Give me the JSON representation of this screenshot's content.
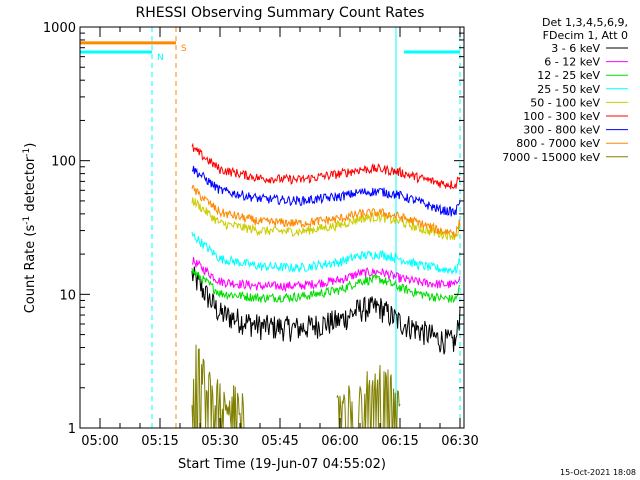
{
  "chart_data": {
    "type": "line",
    "title": "RHESSI Observing Summary Count Rates",
    "xlabel": "Start Time (19-Jun-07 04:55:02)",
    "ylabel_main": "Count Rate (s",
    "ylabel_sup1": "-1",
    "ylabel_mid": " detector",
    "ylabel_sup2": "-1",
    "ylabel_end": ")",
    "yscale": "log",
    "xlim": [
      "04:55",
      "06:31"
    ],
    "ylim": [
      1,
      1000
    ],
    "x_ticks": [
      "05:00",
      "05:15",
      "05:30",
      "05:45",
      "06:00",
      "06:15",
      "06:30"
    ],
    "y_ticks": [
      "1",
      "10",
      "100",
      "1000"
    ],
    "legend_header": [
      "Det 1,3,4,5,6,9,",
      "FDecim 1, Att 0"
    ],
    "legend_position": "right",
    "timestamp": "15-Oct-2021 18:08",
    "data_start": "05:23",
    "data_end": "06:30",
    "series": [
      {
        "name": "3 - 6 keV",
        "color": "#000000",
        "x": [
          "05:23",
          "05:30",
          "05:40",
          "05:50",
          "06:00",
          "06:05",
          "06:10",
          "06:15",
          "06:20",
          "06:25",
          "06:29",
          "06:30"
        ],
        "values": [
          14,
          7.2,
          5.8,
          5.6,
          6.4,
          7.8,
          8.0,
          6.2,
          5.4,
          4.6,
          4.4,
          7.5
        ]
      },
      {
        "name": "6 - 12 keV",
        "color": "#ff00ff",
        "x": [
          "05:23",
          "05:30",
          "05:40",
          "05:50",
          "06:00",
          "06:05",
          "06:10",
          "06:15",
          "06:20",
          "06:25",
          "06:29",
          "06:30"
        ],
        "values": [
          18,
          12.5,
          11.5,
          11.6,
          12.8,
          14.4,
          14.8,
          13.2,
          12.3,
          11.9,
          11.8,
          14.5
        ]
      },
      {
        "name": "12 - 25 keV",
        "color": "#00dd00",
        "x": [
          "05:23",
          "05:30",
          "05:40",
          "05:50",
          "06:00",
          "06:05",
          "06:10",
          "06:15",
          "06:20",
          "06:25",
          "06:29",
          "06:30"
        ],
        "values": [
          15,
          10.2,
          9.4,
          9.6,
          10.8,
          12.6,
          13.0,
          11.2,
          10.1,
          9.4,
          9.2,
          11.5
        ]
      },
      {
        "name": "25 - 50 keV",
        "color": "#00ffff",
        "x": [
          "05:23",
          "05:30",
          "05:40",
          "05:50",
          "06:00",
          "06:05",
          "06:10",
          "06:15",
          "06:20",
          "06:25",
          "06:29",
          "06:30"
        ],
        "values": [
          28,
          18.5,
          16.2,
          15.8,
          17.5,
          19.5,
          20.0,
          18.5,
          16.5,
          15.5,
          15.2,
          18.0
        ]
      },
      {
        "name": "50 - 100 keV",
        "color": "#cccc00",
        "x": [
          "05:23",
          "05:30",
          "05:40",
          "05:50",
          "06:00",
          "06:05",
          "06:10",
          "06:15",
          "06:20",
          "06:25",
          "06:29",
          "06:30"
        ],
        "values": [
          51,
          34,
          30,
          29.5,
          33,
          37,
          38,
          35,
          31,
          28.5,
          27.5,
          32
        ]
      },
      {
        "name": "100 - 300 keV",
        "color": "#ff0000",
        "x": [
          "05:23",
          "05:30",
          "05:40",
          "05:50",
          "06:00",
          "06:05",
          "06:10",
          "06:15",
          "06:20",
          "06:25",
          "06:29",
          "06:30"
        ],
        "values": [
          125,
          86,
          74,
          72,
          80,
          86,
          87,
          82,
          74,
          68,
          66,
          80
        ]
      },
      {
        "name": "300 - 800 keV",
        "color": "#0000ff",
        "x": [
          "05:23",
          "05:30",
          "05:40",
          "05:50",
          "06:00",
          "06:05",
          "06:10",
          "06:15",
          "06:20",
          "06:25",
          "06:29",
          "06:30"
        ],
        "values": [
          88,
          60,
          52,
          50,
          54,
          58,
          59,
          55,
          49,
          43,
          41,
          53
        ]
      },
      {
        "name": "800 - 7000 keV",
        "color": "#ff8800",
        "x": [
          "05:23",
          "05:30",
          "05:40",
          "05:50",
          "06:00",
          "06:05",
          "06:10",
          "06:15",
          "06:20",
          "06:25",
          "06:29",
          "06:30"
        ],
        "values": [
          62,
          41,
          35,
          34,
          37,
          40,
          41,
          38,
          34,
          30,
          29,
          35
        ]
      },
      {
        "name": "7000 - 15000 keV",
        "color": "#808000",
        "x": [
          "05:23",
          "05:24",
          "05:27",
          "05:30",
          "05:32",
          "05:34",
          "05:36",
          "06:00",
          "06:04",
          "06:08",
          "06:12",
          "06:15"
        ],
        "values": [
          1.6,
          3.6,
          2.2,
          1.8,
          1.4,
          1.8,
          1.4,
          1.6,
          2.0,
          2.6,
          2.2,
          1.8
        ]
      }
    ],
    "flags": {
      "night": {
        "label": "N",
        "color": "#00ffff",
        "value": 650,
        "segments": [
          [
            "04:55",
            "05:13"
          ],
          [
            "06:16",
            "06:30"
          ]
        ],
        "marker_at": "05:13"
      },
      "saa": {
        "label": "S",
        "color": "#ff8800",
        "value": 760,
        "segments": [
          [
            "04:55",
            "05:19"
          ]
        ],
        "marker_at": "05:19"
      }
    },
    "vlines": [
      {
        "at": "04:55",
        "color": "#00ffff",
        "style": "solid"
      },
      {
        "at": "05:13",
        "color": "#00ffff",
        "style": "dashed"
      },
      {
        "at": "05:19",
        "color": "#ff8800",
        "style": "dashed"
      },
      {
        "at": "06:14",
        "color": "#00ffff",
        "style": "solid"
      },
      {
        "at": "06:30",
        "color": "#00ffff",
        "style": "dashed"
      }
    ]
  }
}
